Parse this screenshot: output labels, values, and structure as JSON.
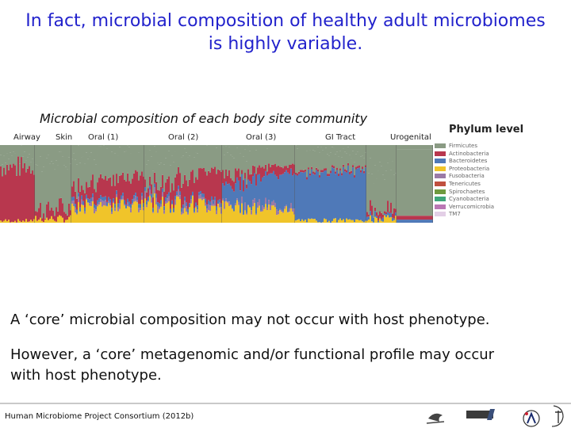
{
  "slide": {
    "title_line1": "In fact, microbial composition of healthy adult microbiomes",
    "title_line2": "is highly variable.",
    "title_color": "#2222cc",
    "body_line1": "A ‘core’ microbial composition  may not occur with host phenotype.",
    "body_line2": "However, a ‘core’ metagenomic and/or functional profile may occur",
    "body_line3": "with host phenotype.",
    "citation": "Human Microbiome Project Consortium (2012b)"
  },
  "figure": {
    "title": "Microbial composition of each body site community",
    "sites": [
      "Airway",
      "Skin",
      "Oral (1)",
      "Oral (2)",
      "Oral (3)",
      "GI Tract",
      "Urogenital"
    ],
    "legend_title": "Phylum level",
    "phyla": [
      {
        "name": "Firmicutes",
        "color": "#8a9b84"
      },
      {
        "name": "Actinobacteria",
        "color": "#b8374e"
      },
      {
        "name": "Bacteroidetes",
        "color": "#4f79b8"
      },
      {
        "name": "Proteobacteria",
        "color": "#f0c42a"
      },
      {
        "name": "Fusobacteria",
        "color": "#9a7aa6"
      },
      {
        "name": "Tenericutes",
        "color": "#c0503f"
      },
      {
        "name": "Spirochaetes",
        "color": "#6f9a3f"
      },
      {
        "name": "Cyanobacteria",
        "color": "#3fa67a"
      },
      {
        "name": "Verrucomicrobia",
        "color": "#ba77b4"
      },
      {
        "name": "TM7",
        "color": "#e3cfe6"
      }
    ]
  }
}
